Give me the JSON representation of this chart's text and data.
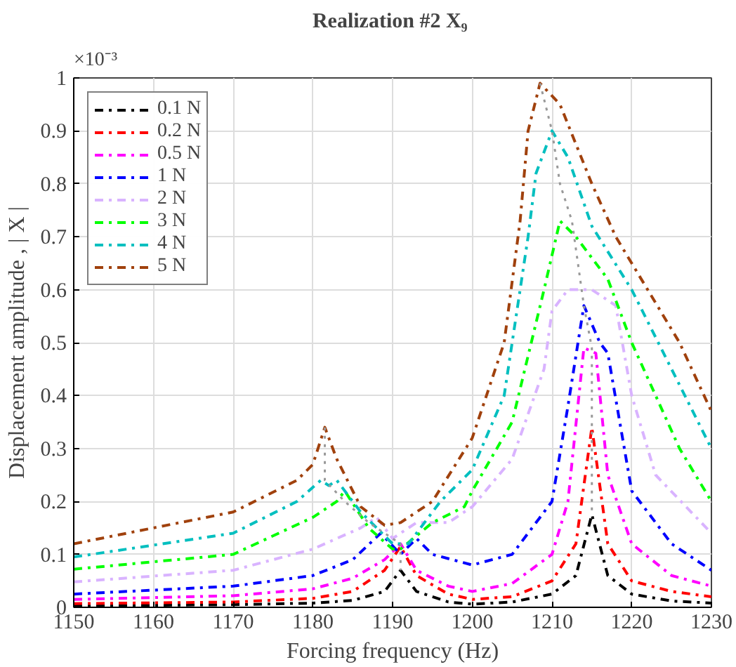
{
  "chart_data": {
    "type": "line",
    "title": "Realization #2  X₉",
    "xlabel": "Forcing frequency (Hz)",
    "ylabel": "Displacement amplitude , | X |",
    "annotations": [
      "×10⁻³"
    ],
    "xlim": [
      1150,
      1230
    ],
    "ylim": [
      0,
      1
    ],
    "xticks": [
      1150,
      1160,
      1170,
      1180,
      1190,
      1200,
      1210,
      1220,
      1230
    ],
    "yticks": [
      0,
      0.1,
      0.2,
      0.3,
      0.4,
      0.5,
      0.6,
      0.7,
      0.8,
      0.9,
      1
    ],
    "grid": true,
    "legend": "top left",
    "line_style": "dashdot",
    "marker": "none",
    "series": [
      {
        "name": "0.1 N",
        "color": "#000000",
        "x": [
          1150,
          1170,
          1180,
          1185,
          1189,
          1191,
          1193,
          1197,
          1200,
          1205,
          1210,
          1213,
          1215,
          1217,
          1220,
          1225,
          1230
        ],
        "values": [
          0.003,
          0.005,
          0.008,
          0.013,
          0.03,
          0.07,
          0.03,
          0.01,
          0.006,
          0.01,
          0.025,
          0.06,
          0.175,
          0.06,
          0.025,
          0.012,
          0.008
        ]
      },
      {
        "name": "0.2 N",
        "color": "#ff0000",
        "x": [
          1150,
          1170,
          1180,
          1185,
          1189,
          1191,
          1193,
          1197,
          1200,
          1205,
          1210,
          1213,
          1215,
          1217,
          1220,
          1225,
          1230
        ],
        "values": [
          0.007,
          0.01,
          0.017,
          0.03,
          0.07,
          0.115,
          0.06,
          0.025,
          0.015,
          0.02,
          0.05,
          0.12,
          0.34,
          0.12,
          0.05,
          0.03,
          0.02
        ]
      },
      {
        "name": "0.5 N",
        "color": "#ff00ff",
        "x": [
          1150,
          1170,
          1180,
          1185,
          1189,
          1191,
          1193,
          1197,
          1200,
          1205,
          1210,
          1212,
          1214,
          1215.5,
          1217,
          1220,
          1225,
          1230
        ],
        "values": [
          0.015,
          0.022,
          0.035,
          0.055,
          0.09,
          0.12,
          0.07,
          0.04,
          0.03,
          0.045,
          0.1,
          0.2,
          0.49,
          0.48,
          0.25,
          0.12,
          0.06,
          0.04
        ]
      },
      {
        "name": "1 N",
        "color": "#0000ff",
        "x": [
          1150,
          1170,
          1180,
          1185,
          1188.5,
          1191,
          1193,
          1195,
          1200,
          1205,
          1210,
          1212,
          1214,
          1216,
          1217,
          1220,
          1225,
          1230
        ],
        "values": [
          0.025,
          0.04,
          0.06,
          0.09,
          0.14,
          0.1,
          0.13,
          0.1,
          0.08,
          0.1,
          0.2,
          0.38,
          0.57,
          0.5,
          0.48,
          0.22,
          0.12,
          0.07
        ]
      },
      {
        "name": "2 N",
        "color": "#d9b3ff",
        "x": [
          1150,
          1170,
          1180,
          1186,
          1188,
          1190,
          1193,
          1197,
          1200,
          1205,
          1209,
          1210,
          1212,
          1215,
          1218,
          1220,
          1223,
          1230
        ],
        "values": [
          0.048,
          0.07,
          0.11,
          0.15,
          0.17,
          0.13,
          0.16,
          0.16,
          0.19,
          0.28,
          0.45,
          0.56,
          0.6,
          0.6,
          0.57,
          0.4,
          0.25,
          0.14
        ]
      },
      {
        "name": "3 N",
        "color": "#00ff00",
        "x": [
          1150,
          1170,
          1180,
          1183,
          1184,
          1187,
          1190,
          1191,
          1195,
          1199,
          1200,
          1205,
          1209,
          1211,
          1213,
          1217,
          1220,
          1223,
          1226,
          1230
        ],
        "values": [
          0.072,
          0.1,
          0.17,
          0.2,
          0.22,
          0.15,
          0.11,
          0.11,
          0.16,
          0.19,
          0.22,
          0.35,
          0.6,
          0.73,
          0.7,
          0.62,
          0.5,
          0.4,
          0.3,
          0.2
        ]
      },
      {
        "name": "4 N",
        "color": "#00bfbf",
        "x": [
          1150,
          1170,
          1178,
          1181,
          1182,
          1183,
          1186,
          1190,
          1192,
          1196,
          1200,
          1204,
          1207,
          1208,
          1210,
          1212,
          1215,
          1220,
          1225,
          1230
        ],
        "values": [
          0.095,
          0.14,
          0.2,
          0.24,
          0.23,
          0.24,
          0.18,
          0.12,
          0.12,
          0.2,
          0.26,
          0.4,
          0.7,
          0.82,
          0.9,
          0.85,
          0.72,
          0.6,
          0.45,
          0.3
        ]
      },
      {
        "name": "5 N",
        "color": "#a0410d",
        "x": [
          1150,
          1170,
          1178,
          1180,
          1181.5,
          1183,
          1186,
          1189,
          1191,
          1195,
          1200,
          1204,
          1206,
          1207,
          1208.5,
          1211,
          1215,
          1218,
          1222,
          1226,
          1230
        ],
        "values": [
          0.12,
          0.18,
          0.24,
          0.27,
          0.34,
          0.28,
          0.19,
          0.155,
          0.16,
          0.2,
          0.32,
          0.5,
          0.73,
          0.9,
          0.99,
          0.95,
          0.8,
          0.7,
          0.6,
          0.5,
          0.37
        ]
      },
      {
        "color": "#999999",
        "line_style": "dotted",
        "x": [
          1181.5,
          1181.5,
          1184,
          1187,
          1191,
          1191
        ],
        "values": [
          0.34,
          0.24,
          0.2,
          0.16,
          0.12,
          0.07
        ]
      },
      {
        "color": "#999999",
        "line_style": "dotted",
        "x": [
          1208.5,
          1210,
          1211,
          1212.5,
          1214,
          1215,
          1215,
          1215
        ],
        "values": [
          0.99,
          0.9,
          0.8,
          0.73,
          0.57,
          0.49,
          0.34,
          0.175
        ]
      }
    ]
  }
}
